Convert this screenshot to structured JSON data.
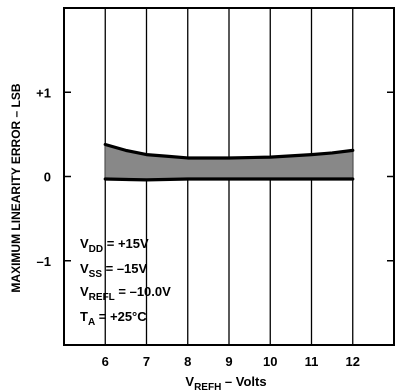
{
  "chart_data": {
    "type": "area",
    "title": "",
    "xlabel": {
      "main": "V",
      "sub": "REFH",
      "rest": " – Volts"
    },
    "ylabel": "MAXIMUM LINEARITY ERROR – LSB",
    "xlim": [
      5,
      13
    ],
    "ylim": [
      -2,
      2
    ],
    "x_ticks": [
      6,
      7,
      8,
      9,
      10,
      11,
      12
    ],
    "x_tick_labels": [
      "6",
      "7",
      "8",
      "9",
      "10",
      "11",
      "12"
    ],
    "y_ticks": [
      1,
      0,
      -1
    ],
    "y_tick_labels": [
      "+1",
      "0",
      "–1"
    ],
    "grid": {
      "vertical": true,
      "horizontal": false
    },
    "series": [
      {
        "x": [
          6,
          6.5,
          7,
          7.5,
          8,
          9,
          10,
          11,
          11.5,
          12
        ],
        "y": [
          0.38,
          0.31,
          0.26,
          0.24,
          0.22,
          0.22,
          0.23,
          0.26,
          0.28,
          0.31
        ]
      },
      {
        "x": [
          6,
          7,
          8,
          9,
          10,
          11,
          12
        ],
        "y": [
          -0.03,
          -0.04,
          -0.03,
          -0.03,
          -0.03,
          -0.03,
          -0.03
        ]
      }
    ],
    "band_fill": "#888888",
    "line_color": "#000000",
    "conditions": [
      {
        "main": "V",
        "sub": "DD",
        "rest": " = +15V"
      },
      {
        "main": "V",
        "sub": "SS",
        "rest": " = –15V"
      },
      {
        "main": "V",
        "sub": "REFL",
        "rest": " = –10.0V"
      },
      {
        "main": "T",
        "sub": "A",
        "rest": " = +25°C"
      }
    ]
  }
}
